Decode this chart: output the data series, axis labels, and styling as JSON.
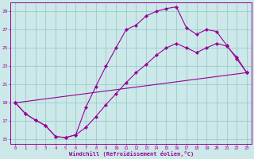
{
  "xlabel": "Windchill (Refroidissement éolien,°C)",
  "background_color": "#cce8e8",
  "grid_color": "#99cccc",
  "line_color": "#990099",
  "xlim": [
    -0.5,
    23.5
  ],
  "ylim": [
    14.5,
    30.0
  ],
  "yticks": [
    15,
    17,
    19,
    21,
    23,
    25,
    27,
    29
  ],
  "xticks": [
    0,
    1,
    2,
    3,
    4,
    5,
    6,
    7,
    8,
    9,
    10,
    11,
    12,
    13,
    14,
    15,
    16,
    17,
    18,
    19,
    20,
    21,
    22,
    23
  ],
  "curve1_x": [
    0,
    1,
    2,
    3,
    4,
    5,
    6,
    7,
    8,
    9,
    10,
    11,
    12,
    13,
    14,
    15,
    16,
    17,
    18,
    19,
    20,
    21,
    22,
    23
  ],
  "curve1_y": [
    19.0,
    17.8,
    17.1,
    16.5,
    15.3,
    15.2,
    15.5,
    18.5,
    20.8,
    23.0,
    25.0,
    27.0,
    27.5,
    28.5,
    29.0,
    29.3,
    29.5,
    27.2,
    26.5,
    27.0,
    26.8,
    25.3,
    23.8,
    22.3
  ],
  "curve2_x": [
    0,
    1,
    2,
    3,
    4,
    5,
    6,
    7,
    8,
    9,
    10,
    11,
    12,
    13,
    14,
    15,
    16,
    17,
    18,
    19,
    20,
    21,
    22,
    23
  ],
  "curve2_y": [
    19.0,
    17.8,
    17.1,
    16.5,
    15.3,
    15.2,
    15.5,
    16.3,
    17.5,
    18.8,
    20.0,
    21.2,
    22.3,
    23.2,
    24.2,
    25.0,
    25.5,
    25.0,
    24.5,
    25.0,
    25.5,
    25.2,
    24.0,
    22.3
  ],
  "curve3_x": [
    0,
    23
  ],
  "curve3_y": [
    19.0,
    22.3
  ]
}
